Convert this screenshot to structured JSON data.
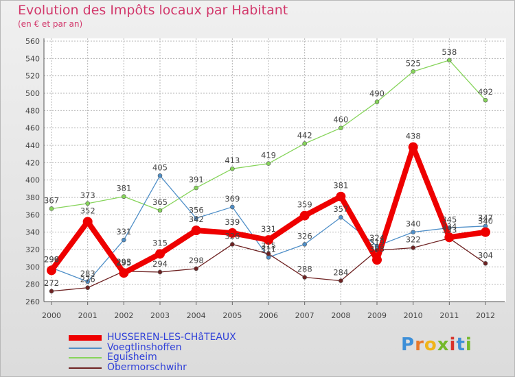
{
  "header": {
    "title": "Evolution des Impôts locaux par Habitant",
    "subtitle": "(en € et par an)"
  },
  "logo": {
    "letters": [
      "P",
      "r",
      "o",
      "x",
      "i",
      "t",
      "i"
    ],
    "colors": [
      "#3d8fd8",
      "#e8782a",
      "#f0b418",
      "#74b92a",
      "#d8322a",
      "#3d8fd8",
      "#74b92a"
    ]
  },
  "chart_data": {
    "type": "line",
    "x": [
      "2000",
      "2001",
      "2002",
      "2003",
      "2004",
      "2005",
      "2006",
      "2007",
      "2008",
      "2009",
      "2010",
      "2011",
      "2012"
    ],
    "ylim": [
      260,
      560
    ],
    "yticks": [
      260,
      280,
      300,
      320,
      340,
      360,
      380,
      400,
      420,
      440,
      460,
      480,
      500,
      520,
      540,
      560
    ],
    "grid": true,
    "legend_position": "bottom-left",
    "series": [
      {
        "name": "Eguisheim",
        "color": "#86d45a",
        "width": 1.3,
        "marker": 3,
        "thick": false,
        "values": [
          367,
          373,
          381,
          365,
          391,
          413,
          419,
          442,
          460,
          490,
          525,
          538,
          492
        ],
        "labels": [
          "367",
          "373",
          "381",
          "365",
          "391",
          "413",
          "419",
          "442",
          "460",
          "490",
          "525",
          "538",
          "492"
        ]
      },
      {
        "name": "Voegtlinshoffen",
        "color": "#4f8fc8",
        "width": 1.3,
        "marker": 3,
        "thick": false,
        "values": [
          299,
          283,
          331,
          405,
          356,
          369,
          311,
          326,
          357,
          324,
          340,
          345,
          347
        ],
        "labels": [
          "299",
          "283",
          "331",
          "405",
          "356",
          "369",
          "311",
          "326",
          "357",
          "324",
          "340",
          "345",
          "347"
        ]
      },
      {
        "name": "Obermorschwihr",
        "color": "#6e2222",
        "width": 1.3,
        "marker": 3,
        "thick": false,
        "values": [
          272,
          276,
          295,
          294,
          298,
          326,
          315,
          288,
          284,
          319,
          322,
          333,
          304
        ],
        "labels": [
          "272",
          "276",
          "295",
          "294",
          "298",
          "326",
          "315",
          "288",
          "284",
          "319",
          "322",
          "333",
          "304"
        ]
      },
      {
        "name": "HUSSEREN-LES-CHâTEAUX",
        "color": "#ee0000",
        "width": 8,
        "marker": 7,
        "thick": true,
        "values": [
          296,
          352,
          293,
          315,
          342,
          339,
          331,
          359,
          381,
          308,
          438,
          334,
          340
        ],
        "labels": [
          "296",
          "352",
          "293",
          "315",
          "342",
          "339",
          "331",
          "359",
          "381",
          "308",
          "438",
          "334",
          "340"
        ]
      }
    ],
    "legend_order": [
      "HUSSEREN-LES-CHâTEAUX",
      "Voegtlinshoffen",
      "Eguisheim",
      "Obermorschwihr"
    ]
  }
}
